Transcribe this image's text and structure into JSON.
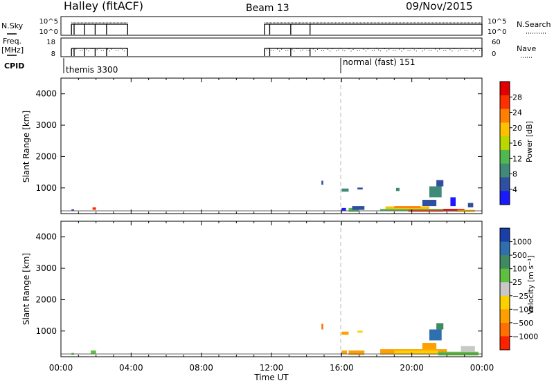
{
  "header": {
    "station": "Halley (fitACF)",
    "beam": "Beam 13",
    "date": "09/Nov/2015"
  },
  "side_labels": {
    "nsky": "N.Sky",
    "freq_top": "Freq.",
    "freq_unit": "[MHz]",
    "cpid": "CPID",
    "nsearch": "N.Search",
    "nave": "Nave"
  },
  "strip_ticks": {
    "nsky_left": [
      "10^5",
      "10^0"
    ],
    "nsearch_right": [
      "10^5",
      "10^0"
    ],
    "freq_left": [
      "18",
      "8"
    ],
    "nave_right": [
      "60",
      "0"
    ]
  },
  "cpid": [
    {
      "label": "themis 3300",
      "start_hour": 0.0
    },
    {
      "label": "normal (fast) 151",
      "start_hour": 16.0
    }
  ],
  "time_axis": {
    "label": "Time UT",
    "range_hours": [
      0,
      24
    ],
    "ticks": [
      "00:00",
      "04:00",
      "08:00",
      "12:00",
      "16:00",
      "20:00",
      "00:00"
    ]
  },
  "colors": {
    "power_scale": [
      "#1a1aff",
      "#2f4fa0",
      "#3f8a78",
      "#4fb84f",
      "#b8d800",
      "#ffc000",
      "#ff8000",
      "#ff3000",
      "#e00000"
    ],
    "velocity_scale": [
      "#1a3fa8",
      "#2f6fb0",
      "#3f8a60",
      "#5fc040",
      "#c8c8c8",
      "#ffd000",
      "#ffa000",
      "#ff7000",
      "#ff2000"
    ]
  },
  "chart_data": [
    {
      "type": "line",
      "title": "N.Sky / N.Search",
      "x": "time_hours",
      "y_left_ticks": [
        "10^5",
        "10^0"
      ],
      "y_right_ticks": [
        "10^5",
        "10^0"
      ],
      "operating_intervals_hours": [
        [
          0.6,
          3.8
        ],
        [
          11.6,
          24.0
        ]
      ],
      "dips_hours": [
        0.75,
        1.35,
        1.95,
        2.6,
        11.9,
        13.1,
        14.2
      ]
    },
    {
      "type": "scatter",
      "title": "Freq. [MHz] / Nave",
      "y_left_range": [
        8,
        18
      ],
      "y_right_range": [
        0,
        60
      ],
      "operating_intervals_hours": [
        [
          0.6,
          3.8
        ],
        [
          11.6,
          24.0
        ]
      ]
    },
    {
      "type": "heatmap",
      "ylabel": "Slant Range [km]",
      "y_ticks": [
        1000,
        2000,
        3000,
        4000
      ],
      "ylim": [
        180,
        4500
      ],
      "xlim_hours": [
        0,
        24
      ],
      "colorbar_label": "Power [dB]",
      "colorbar_ticks": [
        "4",
        "8",
        "12",
        "16",
        "20",
        "24",
        "28"
      ],
      "cell_classes": [
        {
          "from_h": 1.8,
          "to_h": 2.0,
          "r0": 300,
          "r1": 380,
          "c": 7
        },
        {
          "from_h": 0.6,
          "to_h": 0.75,
          "r0": 260,
          "r1": 320,
          "c": 1
        },
        {
          "from_h": 14.85,
          "to_h": 14.95,
          "r0": 1100,
          "r1": 1230,
          "c": 1
        },
        {
          "from_h": 16.0,
          "to_h": 16.4,
          "r0": 880,
          "r1": 980,
          "c": 2
        },
        {
          "from_h": 16.9,
          "to_h": 17.2,
          "r0": 950,
          "r1": 1010,
          "c": 1
        },
        {
          "from_h": 16.0,
          "to_h": 16.25,
          "r0": 260,
          "r1": 360,
          "c": 0
        },
        {
          "from_h": 16.4,
          "to_h": 17.0,
          "r0": 240,
          "r1": 360,
          "c": 3
        },
        {
          "from_h": 16.6,
          "to_h": 17.3,
          "r0": 300,
          "r1": 420,
          "c": 1
        },
        {
          "from_h": 18.2,
          "to_h": 22.0,
          "r0": 280,
          "r1": 330,
          "c": 3
        },
        {
          "from_h": 18.5,
          "to_h": 21.0,
          "r0": 330,
          "r1": 410,
          "c": 5
        },
        {
          "from_h": 19.0,
          "to_h": 20.5,
          "r0": 360,
          "r1": 420,
          "c": 6
        },
        {
          "from_h": 19.8,
          "to_h": 21.8,
          "r0": 240,
          "r1": 300,
          "c": 7
        },
        {
          "from_h": 21.8,
          "to_h": 23.0,
          "r0": 250,
          "r1": 330,
          "c": 8
        },
        {
          "from_h": 22.6,
          "to_h": 23.6,
          "r0": 230,
          "r1": 300,
          "c": 5
        },
        {
          "from_h": 20.6,
          "to_h": 21.4,
          "r0": 420,
          "r1": 620,
          "c": 1
        },
        {
          "from_h": 21.0,
          "to_h": 21.7,
          "r0": 700,
          "r1": 1050,
          "c": 2
        },
        {
          "from_h": 21.4,
          "to_h": 21.8,
          "r0": 1050,
          "r1": 1250,
          "c": 1
        },
        {
          "from_h": 19.1,
          "to_h": 19.3,
          "r0": 900,
          "r1": 1000,
          "c": 2
        },
        {
          "from_h": 22.2,
          "to_h": 22.5,
          "r0": 420,
          "r1": 700,
          "c": 0
        },
        {
          "from_h": 23.2,
          "to_h": 23.5,
          "r0": 380,
          "r1": 520,
          "c": 1
        }
      ]
    },
    {
      "type": "heatmap",
      "ylabel": "Slant Range [km]",
      "y_ticks": [
        1000,
        2000,
        3000,
        4000
      ],
      "ylim": [
        180,
        4500
      ],
      "xlim_hours": [
        0,
        24
      ],
      "colorbar_label": "Velocity [m s⁻¹]",
      "colorbar_ticks": [
        "1000",
        "500",
        "100",
        "25",
        "−25",
        "−100",
        "−500",
        "−1000"
      ],
      "cell_classes": [
        {
          "from_h": 1.7,
          "to_h": 2.0,
          "r0": 280,
          "r1": 380,
          "c": 3
        },
        {
          "from_h": 0.6,
          "to_h": 0.75,
          "r0": 240,
          "r1": 300,
          "c": 3
        },
        {
          "from_h": 14.85,
          "to_h": 14.95,
          "r0": 1050,
          "r1": 1230,
          "c": 7
        },
        {
          "from_h": 16.0,
          "to_h": 16.4,
          "r0": 880,
          "r1": 980,
          "c": 6
        },
        {
          "from_h": 16.9,
          "to_h": 17.2,
          "r0": 950,
          "r1": 1010,
          "c": 5
        },
        {
          "from_h": 16.0,
          "to_h": 16.3,
          "r0": 260,
          "r1": 380,
          "c": 6
        },
        {
          "from_h": 16.4,
          "to_h": 17.3,
          "r0": 240,
          "r1": 380,
          "c": 6
        },
        {
          "from_h": 18.2,
          "to_h": 22.0,
          "r0": 250,
          "r1": 420,
          "c": 6
        },
        {
          "from_h": 19.0,
          "to_h": 21.5,
          "r0": 280,
          "r1": 380,
          "c": 5
        },
        {
          "from_h": 21.5,
          "to_h": 23.8,
          "r0": 220,
          "r1": 340,
          "c": 3
        },
        {
          "from_h": 22.8,
          "to_h": 23.6,
          "r0": 340,
          "r1": 520,
          "c": 4
        },
        {
          "from_h": 21.0,
          "to_h": 21.7,
          "r0": 700,
          "r1": 1050,
          "c": 1
        },
        {
          "from_h": 21.4,
          "to_h": 21.8,
          "r0": 1050,
          "r1": 1250,
          "c": 2
        },
        {
          "from_h": 20.6,
          "to_h": 21.4,
          "r0": 420,
          "r1": 620,
          "c": 6
        }
      ]
    }
  ]
}
